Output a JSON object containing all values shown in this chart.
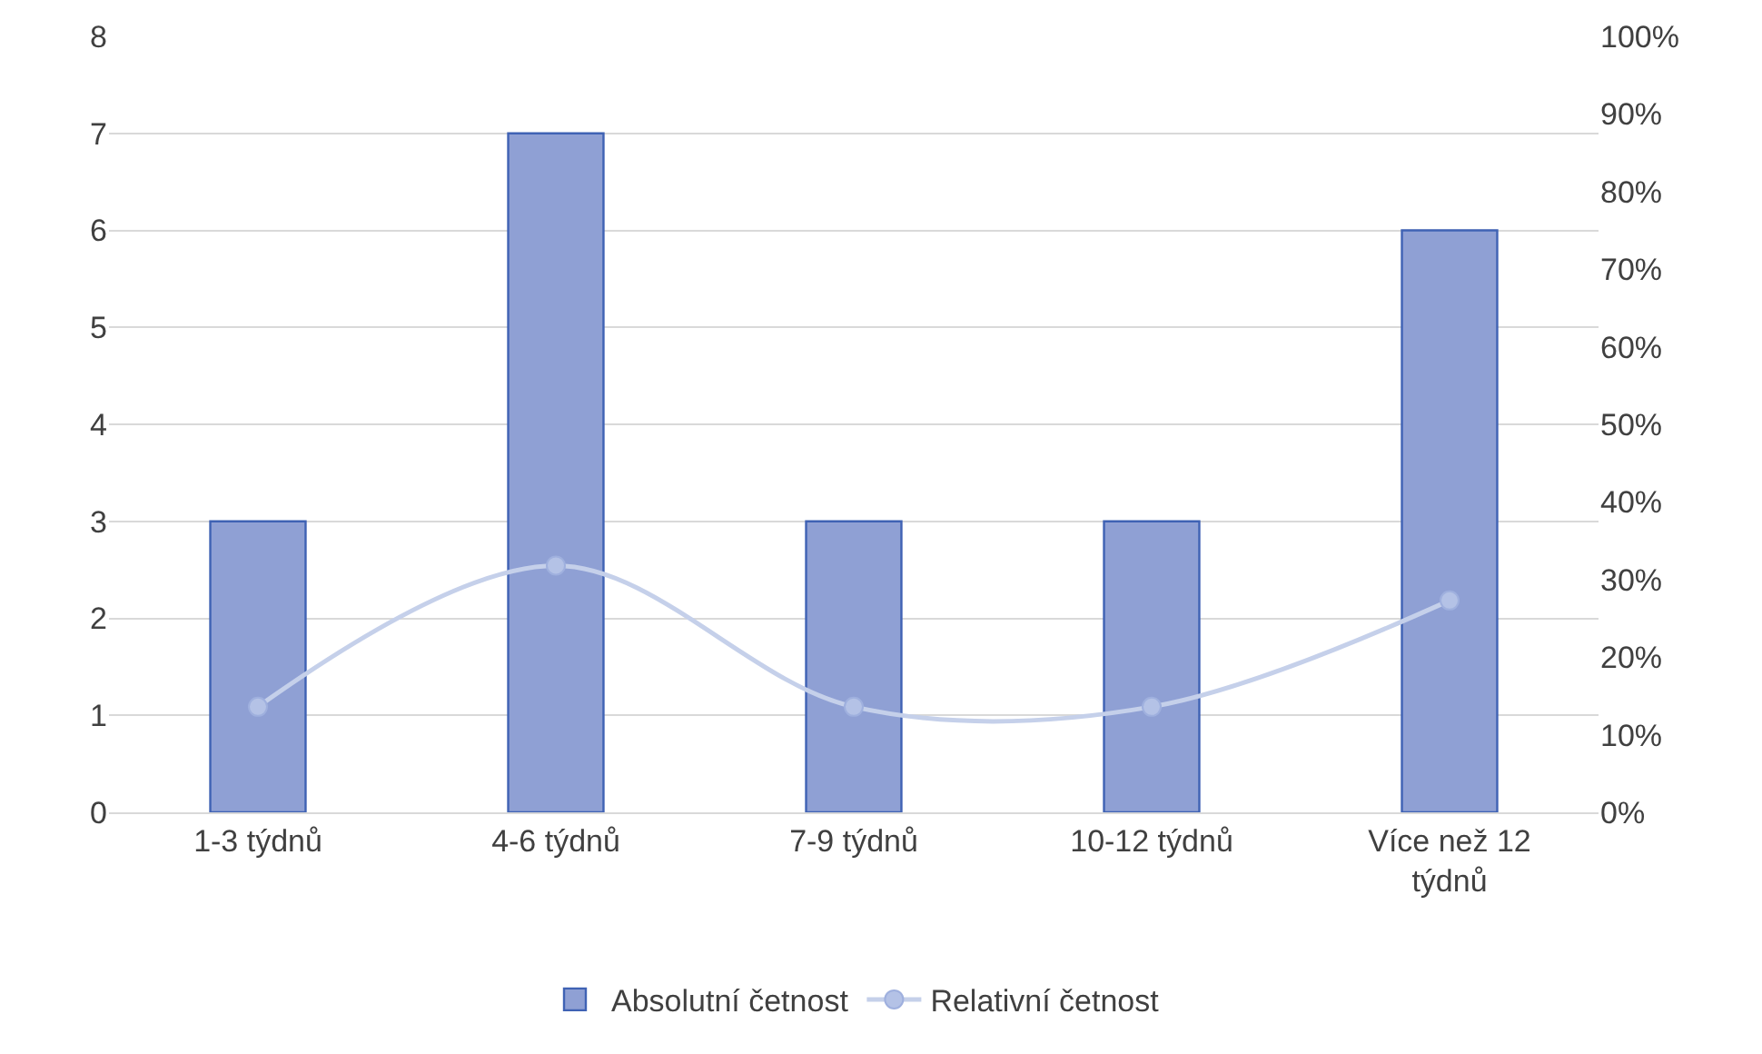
{
  "chart_data": {
    "type": "bar",
    "categories": [
      "1-3 týdnů",
      "4-6 týdnů",
      "7-9 týdnů",
      "10-12 týdnů",
      "Více než 12 týdnů"
    ],
    "series": [
      {
        "name": "Absolutní četnost",
        "color": "#8fa0d4",
        "values": [
          3,
          7,
          3,
          3,
          6
        ]
      },
      {
        "name": "Relativní četnost",
        "type": "line",
        "axis": "y2",
        "color": "#c5d0ea",
        "marker": "circle",
        "values": [
          13.6,
          31.8,
          13.6,
          13.6,
          27.3
        ]
      }
    ],
    "ylim": [
      0,
      8
    ],
    "yticks": [
      0,
      1,
      2,
      3,
      4,
      5,
      6,
      7,
      8
    ],
    "y2lim": [
      0,
      100
    ],
    "y2ticks": [
      {
        "value": 0,
        "label": "0%"
      },
      {
        "value": 10,
        "label": "10%"
      },
      {
        "value": 20,
        "label": "20%"
      },
      {
        "value": 30,
        "label": "30%"
      },
      {
        "value": 40,
        "label": "40%"
      },
      {
        "value": 50,
        "label": "50%"
      },
      {
        "value": 60,
        "label": "60%"
      },
      {
        "value": 70,
        "label": "70%"
      },
      {
        "value": 80,
        "label": "80%"
      },
      {
        "value": 90,
        "label": "90%"
      },
      {
        "value": 100,
        "label": "100%"
      }
    ],
    "grid": "y",
    "legend": "bottom"
  }
}
